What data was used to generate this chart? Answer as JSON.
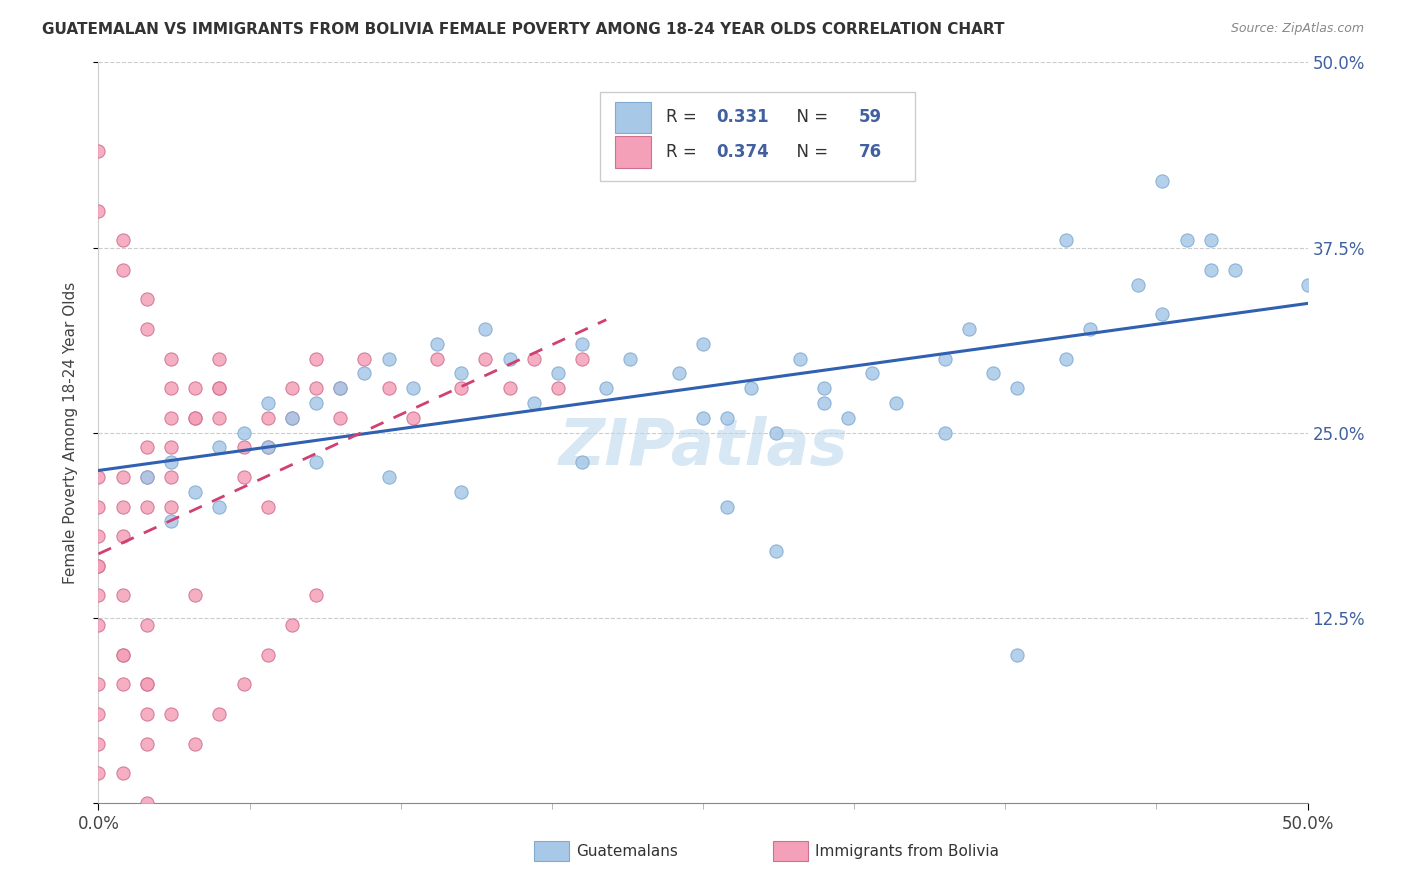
{
  "title": "GUATEMALAN VS IMMIGRANTS FROM BOLIVIA FEMALE POVERTY AMONG 18-24 YEAR OLDS CORRELATION CHART",
  "source": "Source: ZipAtlas.com",
  "ylabel": "Female Poverty Among 18-24 Year Olds",
  "xlim": [
    0.0,
    0.5
  ],
  "ylim": [
    0.0,
    0.5
  ],
  "ytick_vals": [
    0.0,
    0.125,
    0.25,
    0.375,
    0.5
  ],
  "ytick_labels": [
    "",
    "12.5%",
    "25.0%",
    "37.5%",
    "50.0%"
  ],
  "blue_R": 0.331,
  "blue_N": 59,
  "pink_R": 0.374,
  "pink_N": 76,
  "blue_color": "#a8c8e8",
  "pink_color": "#f4a0b8",
  "blue_edge_color": "#80aad0",
  "pink_edge_color": "#d07090",
  "blue_line_color": "#3060b0",
  "pink_line_color": "#d04070",
  "text_color": "#4060a0",
  "watermark": "ZIPatlas",
  "grid_color": "#cccccc",
  "blue_scatter_x": [
    0.02,
    0.03,
    0.04,
    0.05,
    0.06,
    0.07,
    0.08,
    0.09,
    0.1,
    0.11,
    0.12,
    0.13,
    0.14,
    0.15,
    0.16,
    0.17,
    0.18,
    0.19,
    0.2,
    0.21,
    0.22,
    0.24,
    0.25,
    0.26,
    0.27,
    0.28,
    0.29,
    0.3,
    0.31,
    0.32,
    0.33,
    0.35,
    0.36,
    0.37,
    0.38,
    0.4,
    0.41,
    0.43,
    0.44,
    0.45,
    0.46,
    0.47,
    0.03,
    0.05,
    0.07,
    0.09,
    0.12,
    0.15,
    0.2,
    0.25,
    0.3,
    0.35,
    0.4,
    0.26,
    0.28,
    0.38,
    0.44,
    0.46,
    0.5
  ],
  "blue_scatter_y": [
    0.22,
    0.23,
    0.21,
    0.24,
    0.25,
    0.27,
    0.26,
    0.27,
    0.28,
    0.29,
    0.3,
    0.28,
    0.31,
    0.29,
    0.32,
    0.3,
    0.27,
    0.29,
    0.31,
    0.28,
    0.3,
    0.29,
    0.31,
    0.26,
    0.28,
    0.25,
    0.3,
    0.28,
    0.26,
    0.29,
    0.27,
    0.3,
    0.32,
    0.29,
    0.28,
    0.3,
    0.32,
    0.35,
    0.33,
    0.38,
    0.38,
    0.36,
    0.19,
    0.2,
    0.24,
    0.23,
    0.22,
    0.21,
    0.23,
    0.26,
    0.27,
    0.25,
    0.38,
    0.2,
    0.17,
    0.1,
    0.42,
    0.36,
    0.35
  ],
  "pink_scatter_x": [
    0.0,
    0.0,
    0.0,
    0.0,
    0.0,
    0.0,
    0.0,
    0.0,
    0.01,
    0.01,
    0.01,
    0.01,
    0.01,
    0.02,
    0.02,
    0.02,
    0.02,
    0.02,
    0.02,
    0.03,
    0.03,
    0.03,
    0.03,
    0.04,
    0.04,
    0.04,
    0.05,
    0.05,
    0.05,
    0.06,
    0.06,
    0.07,
    0.07,
    0.07,
    0.08,
    0.08,
    0.09,
    0.09,
    0.1,
    0.1,
    0.11,
    0.12,
    0.13,
    0.14,
    0.15,
    0.16,
    0.17,
    0.18,
    0.19,
    0.2,
    0.0,
    0.0,
    0.01,
    0.01,
    0.02,
    0.02,
    0.03,
    0.03,
    0.04,
    0.05,
    0.0,
    0.01,
    0.02,
    0.03,
    0.04,
    0.05,
    0.06,
    0.07,
    0.08,
    0.09,
    0.0,
    0.01,
    0.02,
    0.0,
    0.01,
    0.02
  ],
  "pink_scatter_y": [
    0.2,
    0.18,
    0.16,
    0.14,
    0.22,
    0.08,
    0.06,
    0.04,
    0.22,
    0.2,
    0.18,
    0.1,
    0.08,
    0.24,
    0.22,
    0.2,
    0.08,
    0.06,
    0.04,
    0.26,
    0.24,
    0.22,
    0.2,
    0.28,
    0.26,
    0.14,
    0.3,
    0.28,
    0.26,
    0.24,
    0.22,
    0.26,
    0.24,
    0.2,
    0.28,
    0.26,
    0.3,
    0.28,
    0.28,
    0.26,
    0.3,
    0.28,
    0.26,
    0.3,
    0.28,
    0.3,
    0.28,
    0.3,
    0.28,
    0.3,
    0.44,
    0.4,
    0.38,
    0.36,
    0.34,
    0.32,
    0.3,
    0.28,
    0.26,
    0.28,
    0.12,
    0.1,
    0.08,
    0.06,
    0.04,
    0.06,
    0.08,
    0.1,
    0.12,
    0.14,
    0.02,
    0.02,
    0.0,
    0.16,
    0.14,
    0.12
  ]
}
